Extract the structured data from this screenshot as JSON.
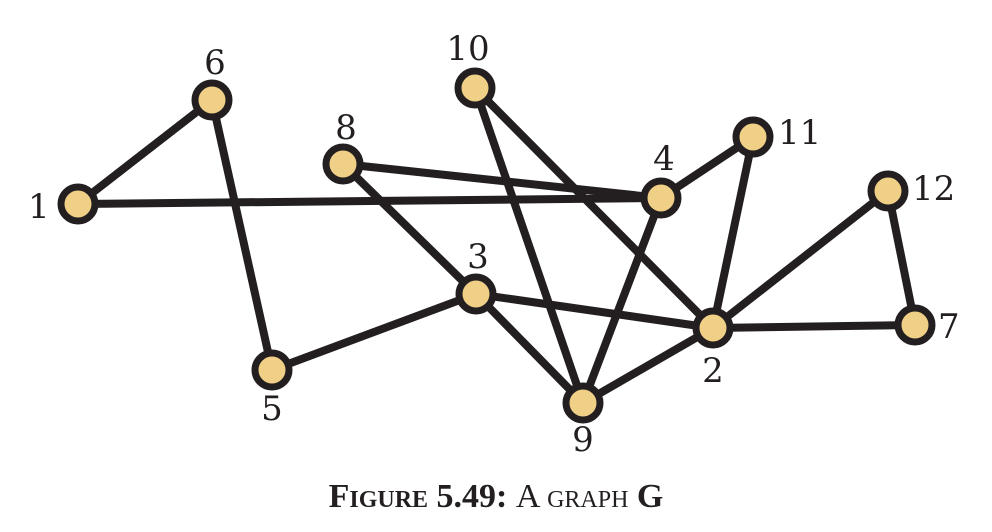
{
  "graph": {
    "nodes": [
      "1",
      "2",
      "3",
      "4",
      "5",
      "6",
      "7",
      "8",
      "9",
      "10",
      "11",
      "12"
    ],
    "edges": [
      [
        "1",
        "6"
      ],
      [
        "1",
        "4"
      ],
      [
        "6",
        "5"
      ],
      [
        "5",
        "3"
      ],
      [
        "8",
        "4"
      ],
      [
        "8",
        "3"
      ],
      [
        "3",
        "2"
      ],
      [
        "3",
        "9"
      ],
      [
        "10",
        "9"
      ],
      [
        "10",
        "2"
      ],
      [
        "4",
        "11"
      ],
      [
        "4",
        "9"
      ],
      [
        "11",
        "2"
      ],
      [
        "2",
        "9"
      ],
      [
        "2",
        "12"
      ],
      [
        "2",
        "7"
      ],
      [
        "12",
        "7"
      ]
    ],
    "colors": {
      "node_fill": "#f0cf86",
      "stroke": "#231f20"
    }
  },
  "caption": {
    "figure": "Figure 5.49:",
    "text": "A graph",
    "name": "G"
  }
}
